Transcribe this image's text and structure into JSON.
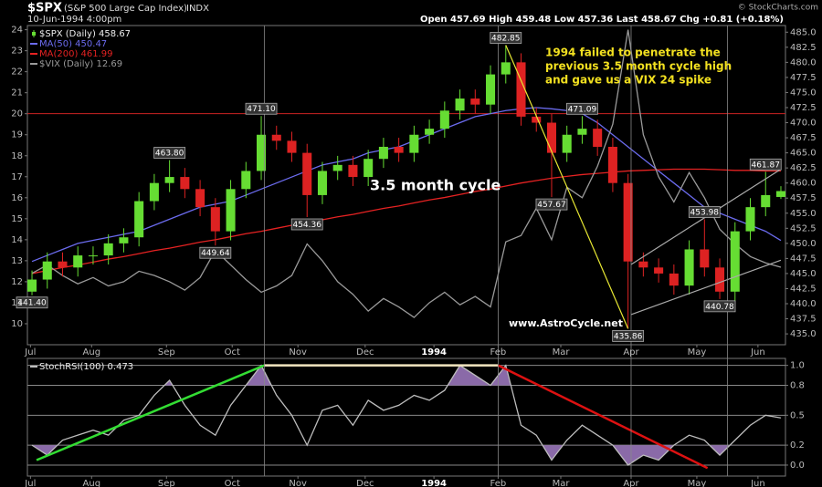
{
  "header": {
    "symbol": "$SPX",
    "name": "(S&P 500 Large Cap Index)",
    "exchange": "INDX",
    "date": "10-Jun-1994 4:00pm",
    "quote": "Open 457.69   High 459.48   Low 457.36   Last 458.67   Chg +0.81 (+0.18%)",
    "credit": "© StockCharts.com"
  },
  "annotations": {
    "cycle": "3.5 month cycle",
    "note": [
      "1994 failed to penetrate the",
      "previous 3.5 month cycle high",
      "and gave us a VIX 24 spike"
    ],
    "site": "www.AstroCycle.net"
  },
  "chart_data": [
    {
      "type": "candlestick",
      "legend": "upper left",
      "xlim": [
        -0.3,
        49.3
      ],
      "xticks": [
        {
          "value": -0.1,
          "label": "Jul"
        },
        {
          "value": 3.9,
          "label": "Aug"
        },
        {
          "value": 8.8,
          "label": "Sep"
        },
        {
          "value": 13.1,
          "label": "Oct"
        },
        {
          "value": 17.4,
          "label": "Nov"
        },
        {
          "value": 21.8,
          "label": "Dec"
        },
        {
          "value": 26.3,
          "label": "1994"
        },
        {
          "value": 30.5,
          "label": "Feb"
        },
        {
          "value": 34.6,
          "label": "Mar"
        },
        {
          "value": 39.2,
          "label": "Apr"
        },
        {
          "value": 43.5,
          "label": "May"
        },
        {
          "value": 47.5,
          "label": "Jun"
        }
      ],
      "ylim": [
        433.2,
        486.1
      ],
      "yticks": [
        {
          "value": 435,
          "label": "435.0"
        },
        437.5,
        {
          "value": 440,
          "label": "440.0"
        },
        442.5,
        {
          "value": 445,
          "label": "445.0"
        },
        447.5,
        {
          "value": 450,
          "label": "450.0"
        },
        452.5,
        {
          "value": 455,
          "label": "455.0"
        },
        457.5,
        {
          "value": 460,
          "label": "460.0"
        },
        462.5,
        {
          "value": 465,
          "label": "465.0"
        },
        467.5,
        {
          "value": 470,
          "label": "470.0"
        },
        472.5,
        {
          "value": 475,
          "label": "475.0"
        },
        477.5,
        {
          "value": 480,
          "label": "480.0"
        },
        482.5,
        {
          "value": 485,
          "label": "485.0"
        }
      ],
      "y2lim": [
        9.0,
        24.2
      ],
      "y2ticks": [
        10,
        11,
        12,
        13,
        14,
        15,
        16,
        17,
        18,
        19,
        20,
        21,
        22,
        23,
        24
      ],
      "series": [
        {
          "name": "$SPX (Daily) 458.67",
          "up_color": "#66dd33",
          "down_color": "#dd2222",
          "open": [
            442,
            444,
            447,
            446,
            448,
            448,
            450,
            451,
            457,
            460,
            461,
            459,
            456,
            452,
            459,
            462,
            468,
            467,
            465,
            458,
            462,
            463,
            461,
            464,
            466,
            465,
            468,
            469,
            472,
            474,
            473,
            478,
            480,
            471,
            470,
            465,
            468,
            469,
            466,
            460,
            447,
            446,
            445,
            443,
            449,
            446,
            442,
            452,
            456,
            457.69
          ],
          "high": [
            445.5,
            448.5,
            448.5,
            449.5,
            449.5,
            451.5,
            452.5,
            458.5,
            461.5,
            463.8,
            462.5,
            460.5,
            457.5,
            460.5,
            463.5,
            471.1,
            469.5,
            468.5,
            466.5,
            463.5,
            464.5,
            464.5,
            465.5,
            467.5,
            467.5,
            469.5,
            470.5,
            473.5,
            475.5,
            475.5,
            479.5,
            482.85,
            481.5,
            472.5,
            471.5,
            469.5,
            471.09,
            470.5,
            467.5,
            461.5,
            448.5,
            447.5,
            446.5,
            450.5,
            453.98,
            447.5,
            453.5,
            457.5,
            461.87,
            459.48
          ],
          "low": [
            441.4,
            442.5,
            444.5,
            444.5,
            446.5,
            446.5,
            448.5,
            449.5,
            455.5,
            458.5,
            457.5,
            454.5,
            449.64,
            450.5,
            457.5,
            460.5,
            465.5,
            463.5,
            454.36,
            456.5,
            460.5,
            459.5,
            459.5,
            462.5,
            463.5,
            463.5,
            466.5,
            467.5,
            470.5,
            471.5,
            471.5,
            476.5,
            469.5,
            468.5,
            457.67,
            463.5,
            466.5,
            464.5,
            458.5,
            435.86,
            444.5,
            443.5,
            441.5,
            441.5,
            444.5,
            440.78,
            440.5,
            450.5,
            454.5,
            457.36
          ],
          "close": [
            444,
            447,
            446,
            448,
            448,
            450,
            451,
            457,
            460,
            461,
            459,
            456,
            452,
            459,
            462,
            468,
            467,
            465,
            458,
            462,
            463,
            461,
            464,
            466,
            465,
            468,
            469,
            472,
            474,
            473,
            478,
            480,
            471,
            470,
            465,
            468,
            469,
            466,
            460,
            447,
            446,
            445,
            443,
            449,
            446,
            442,
            452,
            456,
            458,
            458.67
          ]
        },
        {
          "name": "MA(50) 450.47",
          "color": "#6b6bee",
          "values": [
            447,
            448,
            449,
            450,
            450.5,
            451,
            451.5,
            452,
            453,
            454,
            455,
            456,
            456.5,
            457,
            458,
            459,
            460,
            461,
            462,
            463,
            463.5,
            464,
            465,
            465.5,
            466,
            467,
            468,
            469,
            470,
            471,
            471.5,
            472,
            472.3,
            472.5,
            472.3,
            472,
            471.5,
            470,
            468,
            466,
            464,
            462,
            460,
            458,
            456,
            455,
            454,
            453,
            452,
            450.47
          ]
        },
        {
          "name": "MA(200) 461.99",
          "color": "#e52222",
          "values": [
            445,
            445.5,
            446,
            446.4,
            446.9,
            447.4,
            447.8,
            448.3,
            448.8,
            449.2,
            449.7,
            450.2,
            450.6,
            451.1,
            451.6,
            452,
            452.5,
            453,
            453.4,
            453.9,
            454.4,
            454.8,
            455.3,
            455.8,
            456.2,
            456.7,
            457.2,
            457.6,
            458.1,
            458.6,
            459,
            459.5,
            460,
            460.4,
            460.8,
            461.1,
            461.4,
            461.6,
            461.8,
            462,
            462.1,
            462.2,
            462.3,
            462.3,
            462.3,
            462.2,
            462.1,
            462.1,
            462,
            461.99
          ]
        },
        {
          "name": "$VIX (Daily) 12.69",
          "color": "#9a9a9a",
          "axis": "y2",
          "values": [
            12.4,
            12.8,
            12.3,
            11.9,
            12.2,
            11.8,
            12.0,
            12.5,
            12.3,
            12.0,
            11.6,
            12.2,
            13.5,
            12.8,
            12.1,
            11.5,
            11.8,
            12.3,
            13.8,
            13.0,
            12.0,
            11.4,
            10.6,
            11.2,
            10.8,
            10.3,
            11.0,
            11.5,
            10.9,
            11.3,
            10.8,
            13.9,
            14.2,
            15.5,
            14.0,
            16.5,
            16.0,
            17.5,
            19.5,
            24.0,
            19.0,
            17.0,
            15.8,
            17.2,
            16.0,
            14.5,
            13.8,
            13.2,
            12.9,
            12.69
          ]
        }
      ],
      "price_labels": [
        {
          "x": 0,
          "value": 441.4,
          "label": "441.40"
        },
        {
          "x": 9,
          "value": 463.8,
          "label": "463.80"
        },
        {
          "x": 12,
          "value": 449.64,
          "label": "449.64"
        },
        {
          "x": 15,
          "value": 471.1,
          "label": "471.10"
        },
        {
          "x": 18,
          "value": 454.36,
          "label": "454.36"
        },
        {
          "x": 31,
          "value": 482.85,
          "label": "482.85"
        },
        {
          "x": 34,
          "value": 457.67,
          "label": "457.67"
        },
        {
          "x": 36,
          "value": 471.09,
          "label": "471.09"
        },
        {
          "x": 39,
          "value": 435.86,
          "label": "435.86"
        },
        {
          "x": 44,
          "value": 453.98,
          "label": "453.98"
        },
        {
          "x": 45,
          "value": 440.78,
          "label": "440.78"
        },
        {
          "x": 48,
          "value": 461.87,
          "label": "461.87"
        }
      ],
      "hlines": [
        {
          "value": 471.5,
          "color": "#cc2222"
        }
      ],
      "trendlines": [
        {
          "x": [
            31,
            39
          ],
          "y": [
            482.85,
            435.86
          ],
          "color": "#e6e633"
        },
        {
          "x": [
            39.2,
            49.0
          ],
          "y": [
            438.2,
            447.2
          ],
          "color": "#aaaaaa"
        },
        {
          "x": [
            39.2,
            49.0
          ],
          "y": [
            446.5,
            462.3
          ],
          "color": "#aaaaaa"
        }
      ],
      "vlines": [
        15.2,
        30.5,
        39.2,
        45.5
      ]
    },
    {
      "type": "line",
      "xlim": [
        -0.3,
        49.3
      ],
      "xticks": [
        {
          "value": -0.1,
          "label": "Jul"
        },
        {
          "value": 3.9,
          "label": "Aug"
        },
        {
          "value": 8.8,
          "label": "Sep"
        },
        {
          "value": 13.1,
          "label": "Oct"
        },
        {
          "value": 17.4,
          "label": "Nov"
        },
        {
          "value": 21.8,
          "label": "Dec"
        },
        {
          "value": 26.3,
          "label": "1994"
        },
        {
          "value": 30.5,
          "label": "Feb"
        },
        {
          "value": 34.6,
          "label": "Mar"
        },
        {
          "value": 39.2,
          "label": "Apr"
        },
        {
          "value": 43.5,
          "label": "May"
        },
        {
          "value": 47.5,
          "label": "Jun"
        }
      ],
      "ylim": [
        -0.11,
        1.07
      ],
      "yticks": [
        {
          "value": 0,
          "label": "0.0"
        },
        0.2,
        0.5,
        0.8,
        {
          "value": 1,
          "label": "1.0"
        }
      ],
      "grid": true,
      "fill_above": 0.8,
      "fill_below": 0.2,
      "fill_color": "#8a6aa8",
      "series": [
        {
          "name": "StochRSI(100) 0.473",
          "color": "#bdbdbd",
          "values": [
            0.2,
            0.1,
            0.25,
            0.3,
            0.35,
            0.3,
            0.45,
            0.5,
            0.7,
            0.85,
            0.6,
            0.4,
            0.3,
            0.6,
            0.8,
            1.0,
            0.7,
            0.5,
            0.2,
            0.55,
            0.6,
            0.4,
            0.65,
            0.55,
            0.6,
            0.7,
            0.65,
            0.75,
            1.0,
            0.9,
            0.8,
            1.0,
            0.4,
            0.3,
            0.05,
            0.25,
            0.4,
            0.3,
            0.2,
            0.0,
            0.1,
            0.05,
            0.2,
            0.3,
            0.25,
            0.1,
            0.25,
            0.4,
            0.5,
            0.473
          ]
        }
      ],
      "trendlines": [
        {
          "x": [
            0.3,
            15.2
          ],
          "y": [
            0.05,
            1.0
          ],
          "color": "#33dd33"
        },
        {
          "x": [
            15.2,
            30.5
          ],
          "y": [
            1.0,
            1.0
          ],
          "color": "#f2e6c0"
        },
        {
          "x": [
            30.5,
            44.2
          ],
          "y": [
            1.0,
            -0.03
          ],
          "color": "#dd1111"
        }
      ]
    }
  ]
}
